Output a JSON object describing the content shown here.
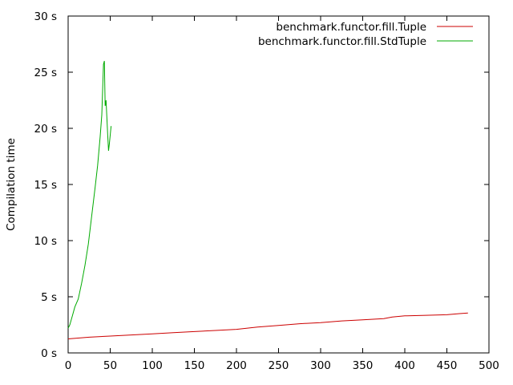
{
  "chart_data": {
    "type": "line",
    "title": "",
    "xlabel": "",
    "ylabel": "Compilation time",
    "xlim": [
      0,
      500
    ],
    "ylim": [
      0,
      30
    ],
    "x_ticks": [
      "0",
      "50",
      "100",
      "150",
      "200",
      "250",
      "300",
      "350",
      "400",
      "450",
      "500"
    ],
    "y_ticks": [
      "0 s",
      "5 s",
      "10 s",
      "15 s",
      "20 s",
      "25 s",
      "30 s"
    ],
    "grid": false,
    "legend_position": "top-right",
    "series": [
      {
        "name": "benchmark.functor.fill.Tuple",
        "color": "#cc0000",
        "points": [
          [
            0,
            1.25
          ],
          [
            25,
            1.4
          ],
          [
            50,
            1.5
          ],
          [
            75,
            1.6
          ],
          [
            100,
            1.7
          ],
          [
            125,
            1.8
          ],
          [
            150,
            1.9
          ],
          [
            175,
            2.0
          ],
          [
            200,
            2.1
          ],
          [
            225,
            2.3
          ],
          [
            250,
            2.45
          ],
          [
            275,
            2.6
          ],
          [
            300,
            2.7
          ],
          [
            325,
            2.85
          ],
          [
            350,
            2.95
          ],
          [
            375,
            3.05
          ],
          [
            385,
            3.2
          ],
          [
            400,
            3.3
          ],
          [
            425,
            3.35
          ],
          [
            450,
            3.4
          ],
          [
            465,
            3.5
          ],
          [
            475,
            3.55
          ]
        ]
      },
      {
        "name": "benchmark.functor.fill.StdTuple",
        "color": "#00aa00",
        "points": [
          [
            0,
            2.2
          ],
          [
            2,
            2.5
          ],
          [
            5,
            3.3
          ],
          [
            8,
            4.1
          ],
          [
            12,
            4.8
          ],
          [
            16,
            6.2
          ],
          [
            20,
            7.8
          ],
          [
            24,
            9.7
          ],
          [
            28,
            12.2
          ],
          [
            32,
            14.7
          ],
          [
            35,
            16.7
          ],
          [
            38,
            19.2
          ],
          [
            40,
            21.2
          ],
          [
            42,
            25.7
          ],
          [
            43,
            26.0
          ],
          [
            44,
            22.0
          ],
          [
            45,
            22.5
          ],
          [
            46,
            21.0
          ],
          [
            47,
            19.5
          ],
          [
            48,
            18.0
          ],
          [
            49,
            18.6
          ],
          [
            50,
            19.4
          ],
          [
            51,
            20.2
          ]
        ]
      }
    ]
  }
}
